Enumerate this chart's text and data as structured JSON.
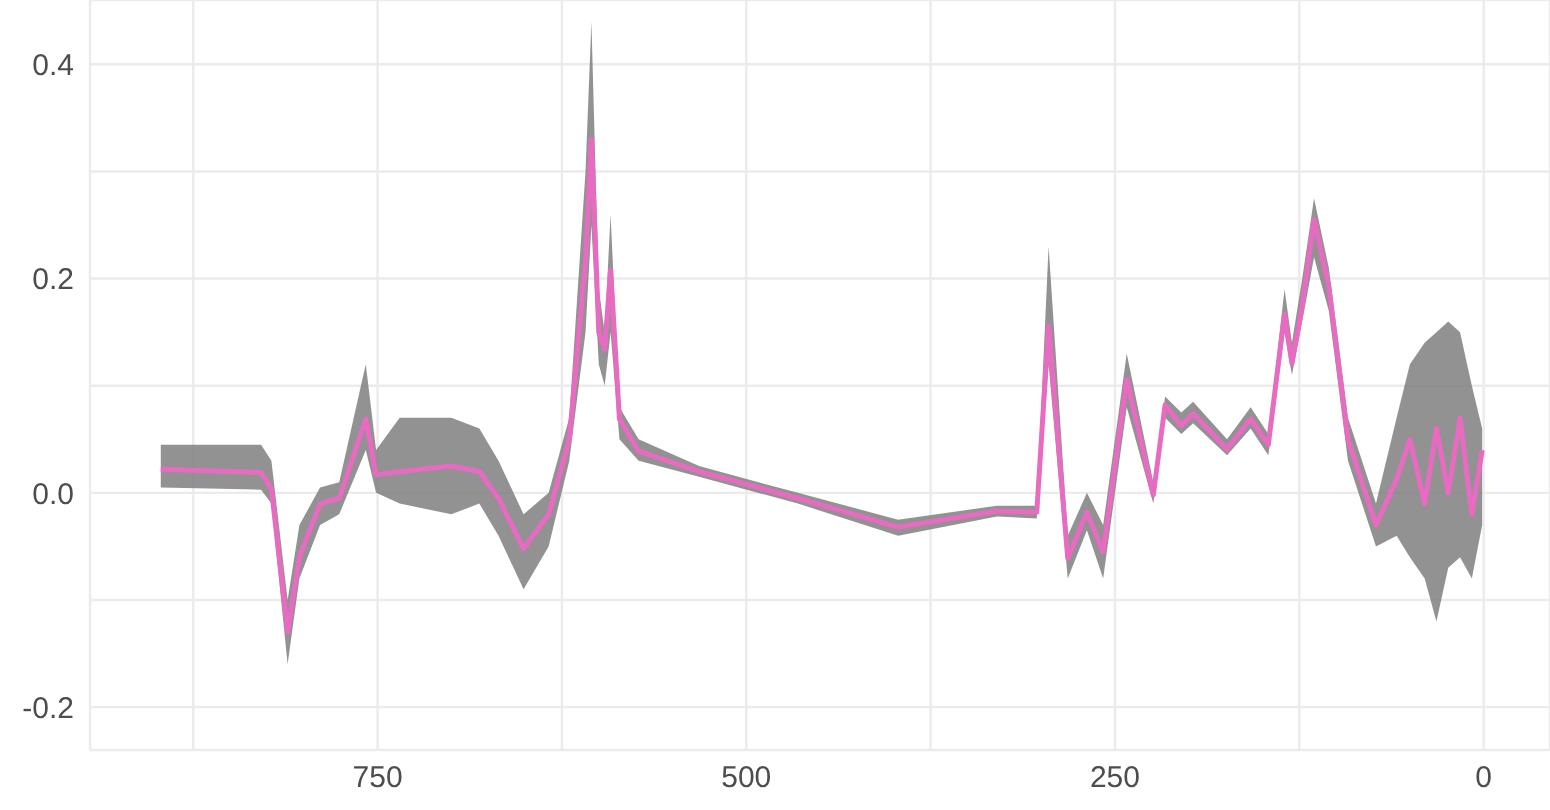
{
  "chart_data": {
    "type": "line",
    "x": [
      897,
      829,
      822,
      811,
      803,
      789,
      776,
      758,
      751,
      735,
      700,
      681,
      668,
      651,
      634,
      620,
      609,
      605,
      600,
      596,
      592,
      586,
      573,
      532,
      465,
      397,
      330,
      303,
      295,
      282,
      269,
      258,
      242,
      224,
      216,
      205,
      197,
      174,
      158,
      146,
      135,
      130,
      123,
      115,
      105,
      92,
      73,
      59,
      50,
      40,
      32,
      24,
      16,
      8,
      1
    ],
    "series": [
      {
        "color": "#e76bc0",
        "values": [
          0.022,
          0.019,
          0.004,
          -0.13,
          -0.06,
          -0.01,
          -0.005,
          0.069,
          0.017,
          0.02,
          0.025,
          0.02,
          -0.005,
          -0.052,
          -0.02,
          0.05,
          0.217,
          0.33,
          0.15,
          0.134,
          0.208,
          0.069,
          0.039,
          0.02,
          -0.005,
          -0.032,
          -0.017,
          -0.018,
          0.156,
          -0.061,
          -0.018,
          -0.055,
          0.106,
          -0.002,
          0.082,
          0.063,
          0.074,
          0.041,
          0.069,
          0.045,
          0.167,
          0.121,
          0.175,
          0.255,
          0.193,
          0.05,
          -0.03,
          0.013,
          0.05,
          -0.01,
          0.06,
          0.0,
          0.07,
          -0.02,
          0.04
        ],
        "lower": [
          0.005,
          0.003,
          -0.01,
          -0.16,
          -0.08,
          -0.03,
          -0.02,
          0.04,
          0.0,
          -0.01,
          -0.02,
          -0.01,
          -0.04,
          -0.09,
          -0.05,
          0.03,
          0.15,
          0.25,
          0.12,
          0.1,
          0.15,
          0.05,
          0.03,
          0.015,
          -0.01,
          -0.04,
          -0.022,
          -0.024,
          0.12,
          -0.08,
          -0.035,
          -0.08,
          0.08,
          -0.01,
          0.07,
          0.055,
          0.065,
          0.035,
          0.06,
          0.035,
          0.15,
          0.11,
          0.16,
          0.22,
          0.17,
          0.03,
          -0.05,
          -0.04,
          -0.06,
          -0.08,
          -0.12,
          -0.07,
          -0.06,
          -0.08,
          -0.03
        ],
        "upper": [
          0.045,
          0.045,
          0.03,
          -0.1,
          -0.03,
          0.005,
          0.01,
          0.12,
          0.04,
          0.07,
          0.07,
          0.06,
          0.03,
          -0.02,
          0.0,
          0.07,
          0.3,
          0.44,
          0.19,
          0.15,
          0.26,
          0.08,
          0.05,
          0.025,
          0.0,
          -0.025,
          -0.012,
          -0.012,
          0.23,
          -0.04,
          0.0,
          -0.03,
          0.13,
          0.01,
          0.09,
          0.075,
          0.085,
          0.05,
          0.08,
          0.055,
          0.19,
          0.14,
          0.2,
          0.275,
          0.21,
          0.07,
          -0.01,
          0.07,
          0.12,
          0.14,
          0.15,
          0.16,
          0.15,
          0.1,
          0.06
        ]
      }
    ],
    "xlim": [
      945,
      -45
    ],
    "xticks": [
      {
        "value": 875,
        "label": null
      },
      750,
      {
        "value": 625,
        "label": null
      },
      500,
      {
        "value": 375,
        "label": null
      },
      250,
      {
        "value": 125,
        "label": null
      },
      0
    ],
    "ylim": [
      -0.24,
      0.46
    ],
    "yticks": [
      -0.2,
      {
        "value": -0.1,
        "label": null
      },
      {
        "value": 0,
        "label": "0.0"
      },
      {
        "value": 0.1,
        "label": null
      },
      0.2,
      {
        "value": 0.3,
        "label": null
      },
      0.4
    ],
    "grid": true
  }
}
